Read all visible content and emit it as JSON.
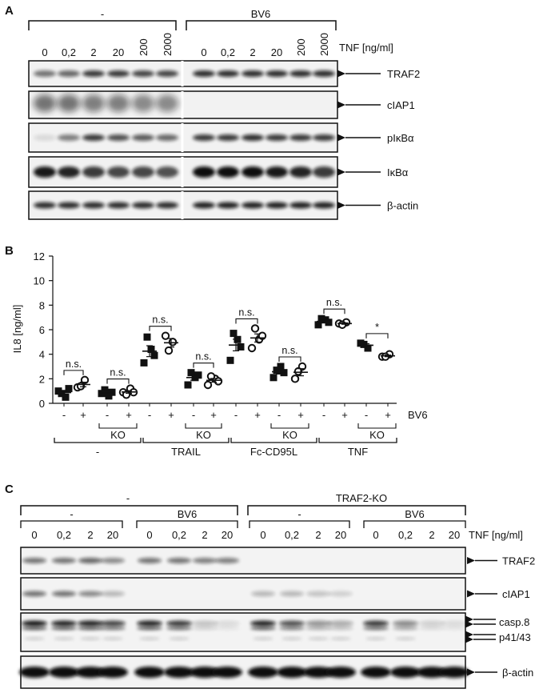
{
  "panel_a": {
    "letter": "A",
    "groups": [
      "-",
      "BV6"
    ],
    "tnf_label": "TNF [ng/ml]",
    "doses": [
      "0",
      "0,2",
      "2",
      "20",
      "200",
      "2000"
    ],
    "blots": [
      "TRAF2",
      "cIAP1",
      "pIκBα",
      "IκBα",
      "β-actin"
    ]
  },
  "panel_b": {
    "letter": "B",
    "bv6_label": "BV6",
    "ko_label": "KO",
    "stimuli": [
      "-",
      "TRAIL",
      "Fc-CD95L",
      "TNF"
    ]
  },
  "panel_c": {
    "letter": "C",
    "top_groups": [
      "-",
      "TRAF2-KO"
    ],
    "sub_groups": [
      "-",
      "BV6",
      "-",
      "BV6"
    ],
    "tnf_label": "TNF [ng/ml]",
    "doses": [
      "0",
      "0,2",
      "2",
      "20"
    ],
    "blots": [
      "TRAF2",
      "cIAP1",
      "casp.8",
      "p41/43",
      "β-actin"
    ]
  },
  "chart_data": {
    "type": "scatter",
    "ylabel": "IL8 [ng/ml]",
    "ylim": [
      0,
      12
    ],
    "yticks": [
      0,
      2,
      4,
      6,
      8,
      10,
      12
    ],
    "x_labels": [
      "-",
      "+",
      "-",
      "+",
      "-",
      "+",
      "-",
      "+",
      "-",
      "+",
      "-",
      "+",
      "-",
      "+",
      "-",
      "+"
    ],
    "series": [
      {
        "name": "BV6 -",
        "marker": "filled-square",
        "color": "#111111"
      },
      {
        "name": "BV6 +",
        "marker": "open-circle",
        "color": "#111111"
      }
    ],
    "groups": [
      {
        "stimulus": "-",
        "ko": false,
        "bv6_minus": [
          1.0,
          0.5,
          0.8,
          1.2
        ],
        "bv6_plus": [
          1.3,
          1.9,
          1.4
        ],
        "sig": "n.s."
      },
      {
        "stimulus": "-",
        "ko": true,
        "bv6_minus": [
          0.8,
          0.6,
          1.1,
          0.9
        ],
        "bv6_plus": [
          0.9,
          1.2,
          0.7,
          0.9
        ],
        "sig": "n.s."
      },
      {
        "stimulus": "TRAIL",
        "ko": false,
        "bv6_minus": [
          3.3,
          4.4,
          5.4,
          3.9
        ],
        "bv6_plus": [
          5.5,
          5.0,
          4.3
        ],
        "sig": "n.s."
      },
      {
        "stimulus": "TRAIL",
        "ko": true,
        "bv6_minus": [
          1.5,
          2.1,
          2.5,
          2.3
        ],
        "bv6_plus": [
          1.5,
          2.0,
          2.2,
          1.8
        ],
        "sig": "n.s."
      },
      {
        "stimulus": "Fc-CD95L",
        "ko": false,
        "bv6_minus": [
          3.5,
          5.2,
          5.7,
          4.6
        ],
        "bv6_plus": [
          4.5,
          5.2,
          6.1,
          5.5
        ],
        "sig": "n.s."
      },
      {
        "stimulus": "Fc-CD95L",
        "ko": true,
        "bv6_minus": [
          2.1,
          3.0,
          2.7,
          2.5
        ],
        "bv6_plus": [
          2.0,
          3.0,
          2.6
        ],
        "sig": "n.s."
      },
      {
        "stimulus": "TNF",
        "ko": false,
        "bv6_minus": [
          6.4,
          6.8,
          6.9,
          6.6
        ],
        "bv6_plus": [
          6.5,
          6.6,
          6.4
        ],
        "sig": "n.s."
      },
      {
        "stimulus": "TNF",
        "ko": true,
        "bv6_minus": [
          4.9,
          4.5,
          4.8
        ],
        "bv6_plus": [
          3.8,
          4.0,
          3.8
        ],
        "sig": "*"
      }
    ]
  }
}
